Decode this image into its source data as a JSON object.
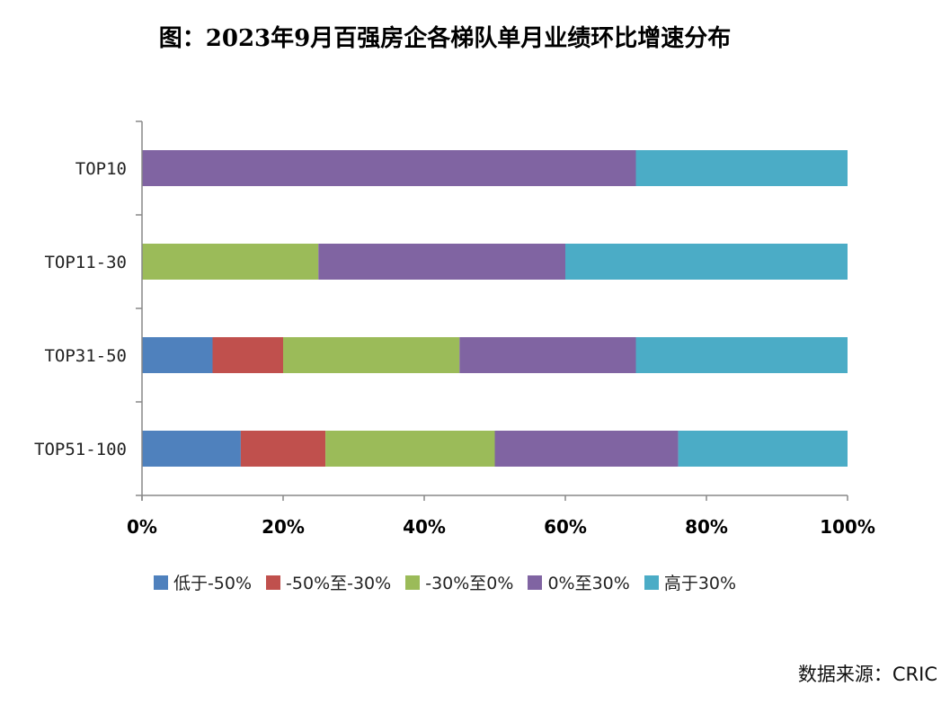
{
  "chart_data": {
    "type": "bar",
    "orientation": "horizontal",
    "stacked": true,
    "title": "图：2023年9月百强房企各梯队单月业绩环比增速分布",
    "categories": [
      "TOP10",
      "TOP11-30",
      "TOP31-50",
      "TOP51-100"
    ],
    "x_ticks": [
      "0%",
      "20%",
      "40%",
      "60%",
      "80%",
      "100%"
    ],
    "xlim": [
      0,
      100
    ],
    "grid": false,
    "legend_position": "bottom",
    "series": [
      {
        "name": "低于-50%",
        "color": "#4f81bd",
        "values": [
          0,
          0,
          10,
          14
        ]
      },
      {
        "name": "-50%至-30%",
        "color": "#c0504d",
        "values": [
          0,
          0,
          10,
          12
        ]
      },
      {
        "name": "-30%至0%",
        "color": "#9bbb59",
        "values": [
          0,
          25,
          25,
          24
        ]
      },
      {
        "name": "0%至30%",
        "color": "#8064a2",
        "values": [
          70,
          35,
          25,
          26
        ]
      },
      {
        "name": "高于30%",
        "color": "#4bacc6",
        "values": [
          30,
          40,
          30,
          24
        ]
      }
    ]
  },
  "footer": {
    "source": "数据来源：CRIC"
  }
}
